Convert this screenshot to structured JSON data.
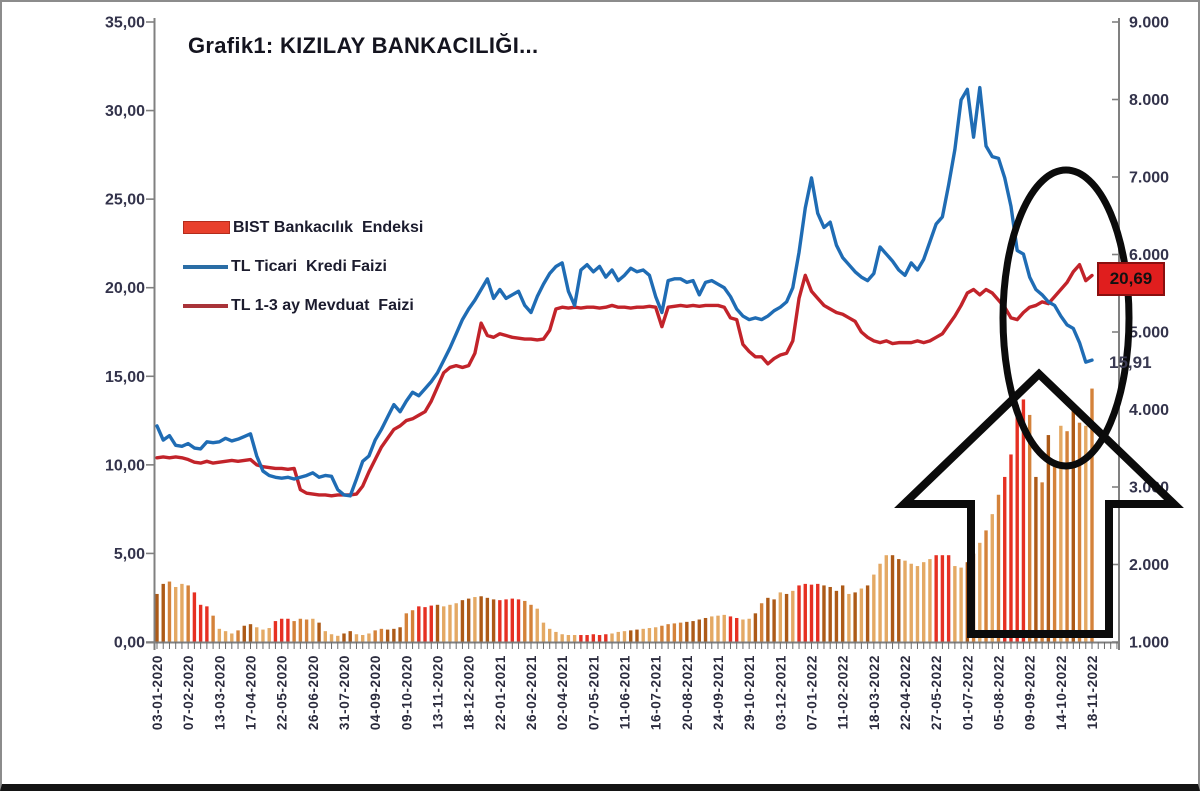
{
  "chart_data": {
    "type": "combo-bar-line",
    "title": "Grafik1: KIZILAY BANKACILIĞI...",
    "x_tick_labels": [
      "03-01-2020",
      "07-02-2020",
      "13-03-2020",
      "17-04-2020",
      "22-05-2020",
      "26-06-2020",
      "31-07-2020",
      "04-09-2020",
      "09-10-2020",
      "13-11-2020",
      "18-12-2020",
      "22-01-2021",
      "26-02-2021",
      "02-04-2021",
      "07-05-2021",
      "11-06-2021",
      "16-07-2021",
      "20-08-2021",
      "24-09-2021",
      "29-10-2021",
      "03-12-2021",
      "07-01-2022",
      "11-02-2022",
      "18-03-2022",
      "22-04-2022",
      "27-05-2022",
      "01-07-2022",
      "05-08-2022",
      "09-09-2022",
      "14-10-2022",
      "18-11-2022"
    ],
    "x_label_every_n_points": 5,
    "left_axis": {
      "tick_labels": [
        "0,00",
        "5,00",
        "10,00",
        "15,00",
        "20,00",
        "25,00",
        "30,00",
        "35,00"
      ],
      "min": 0,
      "max": 35,
      "step": 5
    },
    "right_axis": {
      "tick_labels": [
        "1.000",
        "2.000",
        "3.000",
        "4.000",
        "5.000",
        "6.000",
        "7.000",
        "8.000",
        "9.000"
      ],
      "min": 1000,
      "max": 9000,
      "step": 1000
    },
    "grid": false,
    "legend_position": "inside-top-left",
    "series": [
      {
        "name": "BIST Bankacılık  Endeksi",
        "type": "bar",
        "axis": "right",
        "palette": [
          "#ad5a17",
          "#e4a964",
          "#e63022",
          "#d4823a"
        ],
        "color_pattern": "0031132223111300111222333101110011133000332220111001000222233111111122222111001113333000011122110300101222200001010111001111122211031313222230303130313",
        "values": [
          1620,
          1750,
          1780,
          1710,
          1750,
          1730,
          1640,
          1480,
          1460,
          1340,
          1170,
          1140,
          1110,
          1150,
          1210,
          1230,
          1190,
          1160,
          1180,
          1270,
          1300,
          1300,
          1270,
          1300,
          1290,
          1300,
          1250,
          1140,
          1100,
          1080,
          1110,
          1140,
          1100,
          1090,
          1110,
          1150,
          1170,
          1160,
          1170,
          1190,
          1370,
          1410,
          1460,
          1450,
          1470,
          1480,
          1460,
          1480,
          1500,
          1540,
          1560,
          1580,
          1590,
          1570,
          1550,
          1540,
          1550,
          1560,
          1550,
          1530,
          1480,
          1430,
          1250,
          1170,
          1130,
          1100,
          1090,
          1090,
          1090,
          1090,
          1100,
          1090,
          1100,
          1110,
          1130,
          1140,
          1150,
          1160,
          1170,
          1180,
          1190,
          1210,
          1230,
          1240,
          1250,
          1260,
          1270,
          1290,
          1310,
          1330,
          1340,
          1350,
          1330,
          1310,
          1290,
          1300,
          1370,
          1500,
          1570,
          1550,
          1640,
          1620,
          1660,
          1730,
          1750,
          1740,
          1750,
          1730,
          1710,
          1660,
          1730,
          1620,
          1640,
          1690,
          1730,
          1870,
          2010,
          2120,
          2120,
          2070,
          2050,
          2010,
          1980,
          2030,
          2070,
          2120,
          2120,
          2120,
          1980,
          1960,
          2030,
          2140,
          2280,
          2440,
          2650,
          2900,
          3130,
          3420,
          4060,
          4130,
          3930,
          3130,
          3060,
          3670,
          3330,
          3790,
          3720,
          3990,
          3830,
          3790,
          4270
        ]
      },
      {
        "name": "TL Ticari  Kredi Faizi",
        "type": "line",
        "axis": "left",
        "color": "#1f6cb4",
        "values": [
          12.2,
          11.4,
          11.65,
          11.1,
          11.05,
          11.2,
          10.95,
          10.9,
          11.3,
          11.25,
          11.3,
          11.5,
          11.35,
          11.45,
          11.6,
          11.75,
          10.5,
          9.65,
          9.4,
          9.3,
          9.25,
          9.3,
          9.2,
          9.3,
          9.4,
          9.55,
          9.3,
          9.4,
          9.35,
          8.6,
          8.3,
          8.25,
          9.2,
          10.2,
          10.5,
          11.4,
          12.0,
          12.7,
          13.4,
          13.0,
          13.6,
          14.1,
          13.9,
          14.3,
          14.7,
          15.2,
          15.9,
          16.6,
          17.4,
          18.2,
          18.8,
          19.3,
          19.9,
          20.5,
          19.4,
          19.9,
          19.4,
          19.6,
          19.8,
          19.0,
          18.6,
          19.5,
          20.2,
          20.8,
          21.2,
          21.4,
          19.8,
          19.0,
          21.0,
          21.3,
          20.9,
          21.2,
          20.6,
          21.0,
          20.4,
          20.7,
          21.1,
          20.9,
          21.0,
          20.7,
          19.5,
          18.6,
          20.4,
          20.5,
          20.5,
          20.3,
          20.4,
          19.6,
          20.3,
          20.4,
          20.2,
          20.0,
          19.5,
          18.8,
          18.4,
          18.2,
          18.3,
          18.2,
          18.4,
          18.7,
          18.9,
          19.2,
          20.0,
          22.0,
          24.5,
          26.2,
          24.2,
          23.4,
          23.7,
          22.4,
          21.7,
          21.3,
          20.9,
          20.6,
          20.4,
          20.8,
          22.3,
          21.9,
          21.5,
          21.0,
          20.7,
          21.4,
          21.0,
          21.6,
          22.6,
          23.6,
          24.0,
          25.8,
          27.8,
          30.6,
          31.2,
          28.5,
          31.3,
          28.0,
          27.4,
          27.3,
          26.2,
          24.6,
          22.1,
          21.9,
          20.6,
          19.9,
          19.6,
          19.2,
          19.0,
          18.4,
          17.9,
          17.7,
          16.9,
          15.8,
          15.91
        ]
      },
      {
        "name": "TL 1-3 ay Mevduat  Faizi",
        "type": "line",
        "axis": "left",
        "color": "#c2232a",
        "values": [
          10.4,
          10.45,
          10.4,
          10.45,
          10.4,
          10.3,
          10.15,
          10.1,
          10.2,
          10.1,
          10.15,
          10.2,
          10.25,
          10.2,
          10.25,
          10.3,
          10.0,
          9.9,
          9.85,
          9.8,
          9.8,
          9.75,
          9.8,
          8.6,
          8.4,
          8.35,
          8.3,
          8.3,
          8.25,
          8.3,
          8.3,
          8.3,
          8.35,
          8.8,
          9.6,
          10.3,
          11.0,
          11.5,
          12.0,
          12.2,
          12.5,
          12.6,
          12.8,
          13.0,
          13.6,
          14.4,
          15.2,
          15.5,
          15.6,
          15.5,
          15.6,
          16.3,
          18.0,
          17.3,
          17.2,
          17.4,
          17.3,
          17.2,
          17.15,
          17.1,
          17.1,
          17.05,
          17.1,
          17.6,
          18.8,
          18.9,
          18.85,
          18.9,
          18.85,
          18.9,
          18.9,
          18.85,
          18.9,
          19.0,
          18.9,
          18.9,
          18.85,
          18.9,
          18.9,
          18.95,
          18.9,
          17.8,
          18.9,
          18.95,
          19.0,
          18.95,
          19.0,
          18.95,
          19.0,
          19.0,
          19.0,
          18.9,
          18.3,
          18.2,
          16.8,
          16.4,
          16.1,
          16.1,
          15.7,
          16.0,
          16.2,
          16.3,
          17.0,
          19.4,
          20.7,
          19.8,
          19.4,
          19.0,
          18.8,
          18.6,
          18.5,
          18.3,
          18.1,
          17.5,
          17.2,
          17.0,
          16.9,
          17.0,
          16.85,
          16.9,
          16.9,
          16.9,
          17.0,
          16.9,
          17.0,
          17.2,
          17.4,
          17.9,
          18.4,
          19.0,
          19.7,
          19.9,
          19.6,
          19.9,
          19.7,
          19.3,
          18.9,
          18.3,
          18.2,
          18.6,
          18.9,
          19.0,
          19.2,
          19.1,
          19.5,
          19.9,
          20.3,
          20.9,
          21.3,
          20.4,
          20.69
        ]
      }
    ],
    "endpoint_labels": [
      {
        "text": "20,69",
        "series": "TL 1-3 ay Mevduat  Faizi",
        "style": "red-box",
        "bg": "#e01e1e",
        "border": "#8a0f0f",
        "text_color": "#111111"
      },
      {
        "text": "15,91",
        "series": "TL Ticari  Kredi Faizi",
        "style": "plain",
        "text_color": "#3a3a52"
      }
    ],
    "annotations": {
      "ellipse": true,
      "up_arrow": true,
      "color": "#0b0b0b"
    }
  },
  "legend": {
    "items": [
      {
        "label": "BIST Bankacılık  Endeksi",
        "swatch": "bar",
        "color": "#e8402c"
      },
      {
        "label": "TL Ticari  Kredi Faizi",
        "swatch": "line",
        "color": "#2a6da5"
      },
      {
        "label": "TL 1-3 ay Mevduat  Faizi",
        "swatch": "line",
        "color": "#a93339"
      }
    ]
  },
  "colors": {
    "background": "#ffffff",
    "frame_border": "#8c8c8c",
    "bottom_bar": "#141414",
    "axis_line": "#808080",
    "y_tick_label": "#33334b",
    "x_tick_label": "#2b2b3d",
    "title": "#14141f",
    "legend_text": "#1c1c2e"
  }
}
